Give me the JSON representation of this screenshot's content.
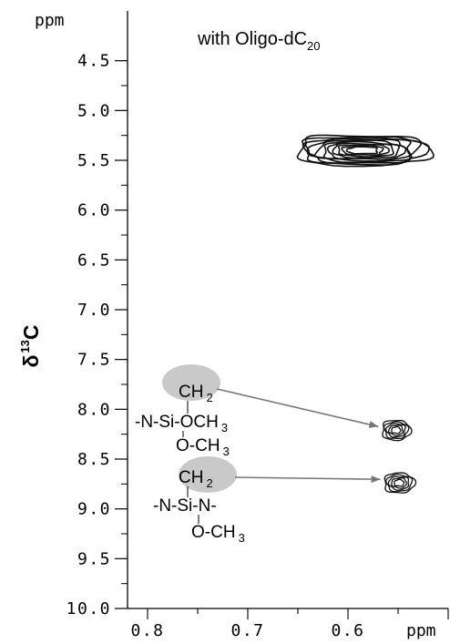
{
  "chart_data": {
    "type": "contour",
    "title": "with Oligo-dC",
    "title_subscript": "20",
    "y_unit": "ppm",
    "y_symbol": "δ",
    "y_superscript": "13",
    "y_nucleus": "C",
    "x_unit": "ppm",
    "x_ticks": [
      "0.8",
      "0.7",
      "0.6"
    ],
    "x_tick_values": [
      0.8,
      0.7,
      0.6
    ],
    "y_ticks": [
      "4.5",
      "5.0",
      "5.5",
      "6.0",
      "6.5",
      "7.0",
      "7.5",
      "8.0",
      "8.5",
      "9.0",
      "9.5",
      "10.0"
    ],
    "y_tick_values": [
      4.5,
      5.0,
      5.5,
      6.0,
      6.5,
      7.0,
      7.5,
      8.0,
      8.5,
      9.0,
      9.5,
      10.0
    ],
    "xlim": [
      0.82,
      0.5
    ],
    "ylim": [
      4.0,
      10.0
    ],
    "peaks": [
      {
        "x": 0.585,
        "y": 5.4,
        "x_width": 0.13,
        "y_width": 0.3
      },
      {
        "x": 0.552,
        "y": 8.21,
        "x_width": 0.028,
        "y_width": 0.2
      },
      {
        "x": 0.549,
        "y": 8.74,
        "x_width": 0.03,
        "y_width": 0.2
      }
    ],
    "annotations": [
      {
        "lines": [
          {
            "text": "CH",
            "sub": "2"
          },
          {
            "text": "-N-Si-OCH",
            "sub": "3"
          },
          {
            "text": "O-CH",
            "sub": "3"
          }
        ],
        "points_to_peak": 1
      },
      {
        "lines": [
          {
            "text": "CH",
            "sub": "2"
          },
          {
            "text": "-N-Si-N-",
            "sub": ""
          },
          {
            "text": "O-CH",
            "sub": "3"
          }
        ],
        "points_to_peak": 2
      }
    ]
  }
}
